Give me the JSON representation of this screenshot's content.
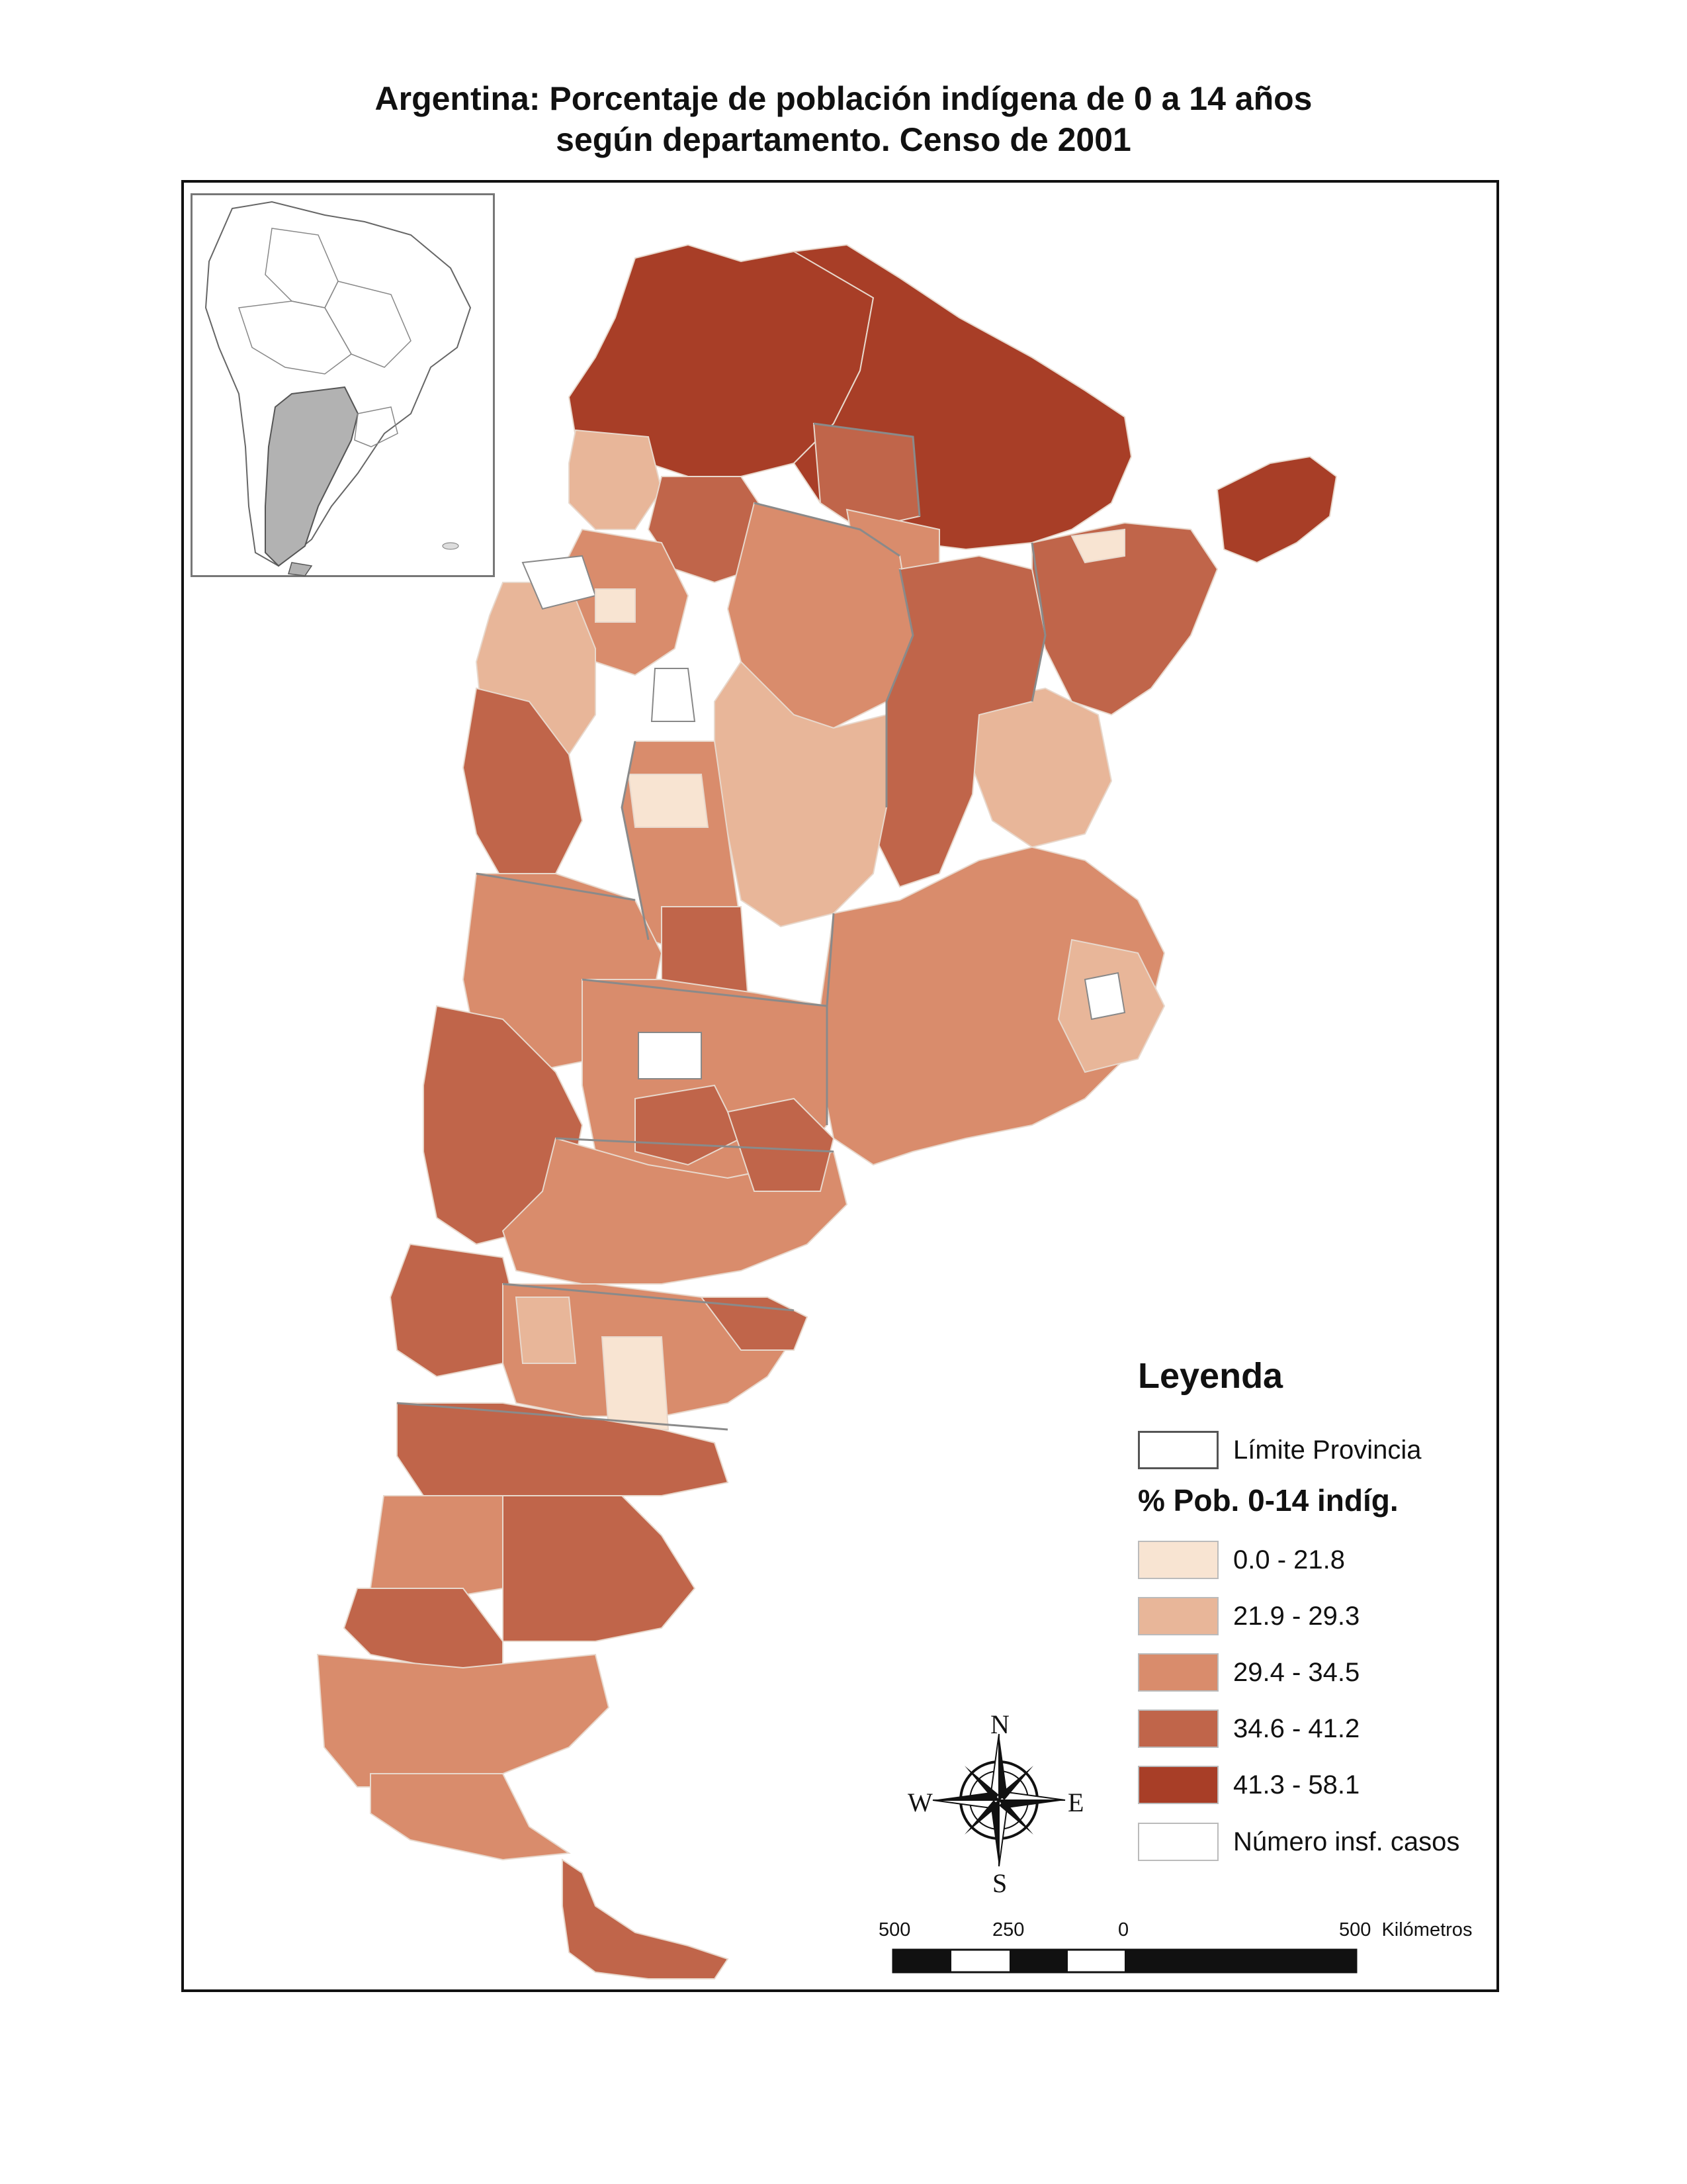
{
  "title_line1": "Argentina: Porcentaje de población indígena de 0 a 14 años",
  "title_line2": "según departamento. Censo de 2001",
  "legend": {
    "title": "Leyenda",
    "boundary_label": "Límite Provincia",
    "subtitle": "% Pob. 0-14 indíg.",
    "classes": [
      {
        "label": "0.0 - 21.8",
        "color": "#f8e4d2"
      },
      {
        "label": "21.9 - 29.3",
        "color": "#e8b699"
      },
      {
        "label": "29.4 - 34.5",
        "color": "#d98c6c"
      },
      {
        "label": "34.6 - 41.2",
        "color": "#c0654a"
      },
      {
        "label": "41.3 - 58.1",
        "color": "#a83e27"
      }
    ],
    "insufficient_label": "Número insf. casos",
    "insufficient_color": "#ffffff"
  },
  "compass": {
    "n": "N",
    "s": "S",
    "e": "E",
    "w": "W"
  },
  "scale_bar": {
    "ticks": [
      "500",
      "250",
      "0",
      "500"
    ],
    "unit": "Kilómetros"
  },
  "icons": [
    "compass-rose-icon",
    "south-america-locator-icon"
  ]
}
